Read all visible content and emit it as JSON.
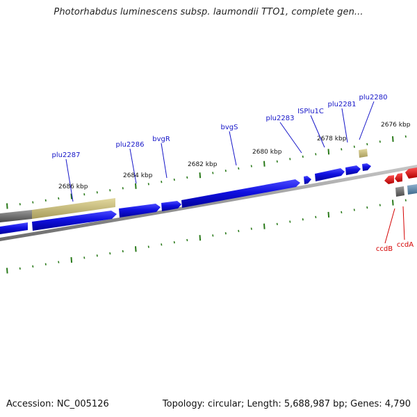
{
  "title": "Photorhabdus luminescens subsp. laumondii TTO1, complete gen...",
  "footer": {
    "accession": "Accession: NC_005126",
    "summary": "Topology: circular; Length: 5,688,987 bp; Genes: 4,790"
  },
  "scale": {
    "unit": "kbp",
    "labels": [
      "2686 kbp",
      "2684 kbp",
      "2682 kbp",
      "2680 kbp",
      "2678 kbp",
      "2676 kbp"
    ]
  },
  "genes_forward": [
    {
      "name": "plu2287",
      "color": "#1515c8"
    },
    {
      "name": "plu2286",
      "color": "#1515c8"
    },
    {
      "name": "bvgR",
      "color": "#1515c8"
    },
    {
      "name": "bvgS",
      "color": "#1515c8"
    },
    {
      "name": "plu2283",
      "color": "#1515c8"
    },
    {
      "name": "ISPlu1C",
      "color": "#1515c8"
    },
    {
      "name": "plu2281",
      "color": "#1515c8"
    },
    {
      "name": "plu2280",
      "color": "#1515c8"
    }
  ],
  "genes_reverse": [
    {
      "name": "ccdB",
      "color": "#d40000"
    },
    {
      "name": "ccdA",
      "color": "#d40000"
    }
  ],
  "colors": {
    "forward_gene": "#1a1ae6",
    "reverse_gene": "#ee0000",
    "backbone": "#8a8a8a",
    "tick": "#2a7a1a",
    "region_tan": "#c8bd7c",
    "region_gray": "#777777"
  }
}
